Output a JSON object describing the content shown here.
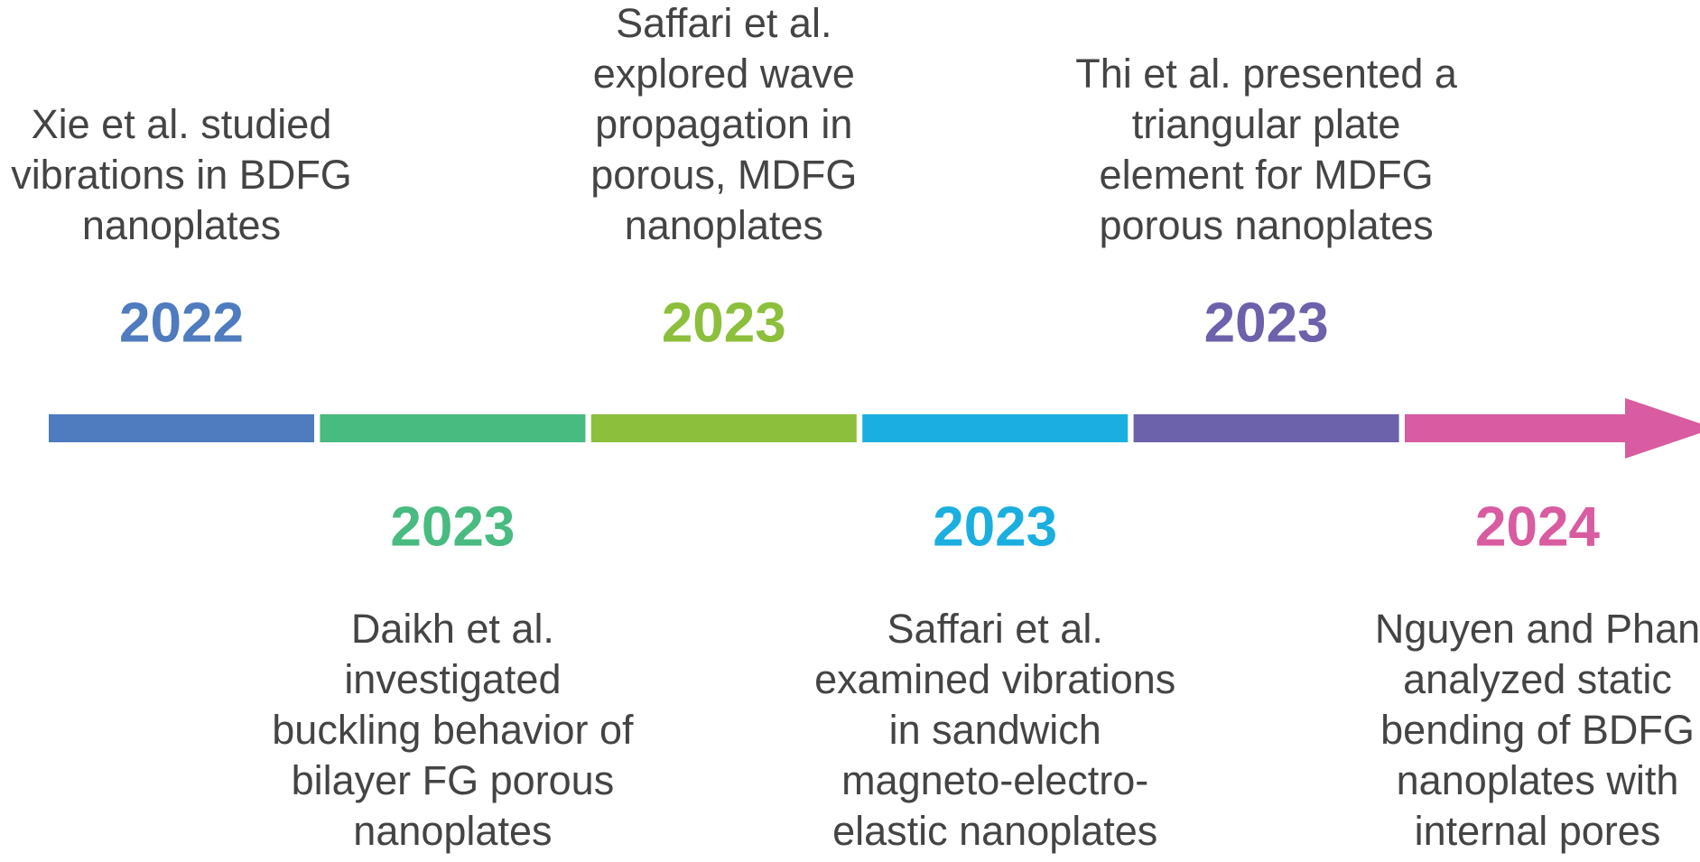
{
  "timeline": {
    "events": [
      {
        "year": "2022",
        "color": "#4f7bbf",
        "position": "top",
        "lines": [
          "Xie et al. studied",
          "vibrations in BDFG",
          "nanoplates"
        ]
      },
      {
        "year": "2023",
        "color": "#48bb80",
        "position": "bottom",
        "lines": [
          "Daikh et al.",
          "investigated",
          "buckling behavior of",
          "bilayer FG porous",
          "nanoplates"
        ]
      },
      {
        "year": "2023",
        "color": "#8cbf3c",
        "position": "top",
        "lines": [
          "Saffari et al.",
          "explored wave",
          "propagation in",
          "porous, MDFG",
          "nanoplates"
        ]
      },
      {
        "year": "2023",
        "color": "#1bafe0",
        "position": "bottom",
        "lines": [
          "Saffari et al.",
          "examined vibrations",
          "in sandwich",
          "magneto-electro-",
          "elastic nanoplates"
        ]
      },
      {
        "year": "2023",
        "color": "#6c61ab",
        "position": "top",
        "lines": [
          "Thi et al. presented a",
          "triangular plate",
          "element for MDFG",
          "porous nanoplates"
        ]
      },
      {
        "year": "2024",
        "color": "#d95ba0",
        "position": "bottom",
        "lines": [
          "Nguyen and Phan",
          "analyzed static",
          "bending of BDFG",
          "nanoplates with",
          "internal pores"
        ]
      }
    ]
  }
}
